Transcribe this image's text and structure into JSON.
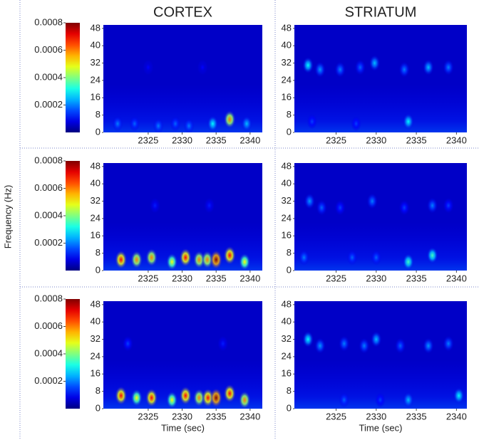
{
  "chart_data": [
    {
      "type": "heatmap",
      "title": "CORTEX",
      "xlim": [
        2318.4,
        2341.8
      ],
      "xticks": [
        2325,
        2330,
        2335,
        2340
      ],
      "ylim": [
        0,
        49.6
      ],
      "yticks": [
        0,
        8,
        16,
        24,
        32,
        40,
        48
      ],
      "colorbar": {
        "lim": [
          0,
          0.0008
        ],
        "ticks": [
          0.0002,
          0.0004,
          0.0006,
          0.0008
        ]
      },
      "x": [
        2320.5,
        2323,
        2326.5,
        2329,
        2331,
        2334.5,
        2337,
        2339.5,
        2333,
        2325
      ],
      "y": [
        4,
        4,
        3,
        4,
        3,
        4,
        6,
        4,
        30,
        30
      ],
      "values": [
        0.0002,
        0.00018,
        0.0002,
        0.00018,
        0.0002,
        0.0003,
        0.0006,
        0.00025,
        0.0001,
        0.0001
      ]
    },
    {
      "type": "heatmap",
      "title": "STRIATUM",
      "xlim": [
        2319.8,
        2341.3
      ],
      "xticks": [
        2325,
        2330,
        2335,
        2340
      ],
      "ylim": [
        0,
        49.6
      ],
      "yticks": [
        0,
        8,
        16,
        24,
        32,
        40,
        48
      ],
      "x": [
        2321.5,
        2323,
        2325.5,
        2328,
        2329.8,
        2333.5,
        2336.5,
        2339,
        2334,
        2322,
        2327.5
      ],
      "y": [
        31,
        29,
        29,
        30,
        32,
        29,
        30,
        30,
        5,
        5,
        4
      ],
      "values": [
        0.0003,
        0.00022,
        0.0002,
        0.00018,
        0.00025,
        0.0002,
        0.00025,
        0.0002,
        0.0003,
        0.00015,
        0.00015
      ]
    },
    {
      "type": "heatmap",
      "y_label": "Frequency (Hz)",
      "xlim": [
        2318.4,
        2341.8
      ],
      "xticks": [
        2325,
        2330,
        2335,
        2340
      ],
      "ylim": [
        0,
        49.6
      ],
      "yticks": [
        0,
        8,
        16,
        24,
        32,
        40,
        48
      ],
      "colorbar": {
        "lim": [
          0,
          0.0008
        ],
        "ticks": [
          0.0002,
          0.0004,
          0.0006,
          0.0008
        ]
      },
      "x": [
        2321,
        2323.3,
        2325.5,
        2328.5,
        2330.5,
        2332.5,
        2333.7,
        2335,
        2337,
        2339.2,
        2326,
        2334
      ],
      "y": [
        5,
        5,
        6,
        4,
        6,
        5,
        5,
        5,
        7,
        4,
        30,
        30
      ],
      "values": [
        0.0007,
        0.0006,
        0.0006,
        0.0005,
        0.0007,
        0.0006,
        0.0006,
        0.0008,
        0.0007,
        0.0005,
        0.00012,
        0.00012
      ]
    },
    {
      "type": "heatmap",
      "xlim": [
        2319.8,
        2341.3
      ],
      "xticks": [
        2325,
        2330,
        2335,
        2340
      ],
      "ylim": [
        0,
        49.6
      ],
      "yticks": [
        0,
        8,
        16,
        24,
        32,
        40,
        48
      ],
      "x": [
        2321.7,
        2323.2,
        2325.5,
        2329.5,
        2333.5,
        2337,
        2339,
        2334,
        2337,
        2321,
        2327,
        2330
      ],
      "y": [
        32,
        29,
        29,
        32,
        29,
        30,
        30,
        4,
        7,
        6,
        6,
        6
      ],
      "values": [
        0.00022,
        0.00018,
        0.00015,
        0.0002,
        0.00015,
        0.0002,
        0.00015,
        0.00035,
        0.00035,
        0.0002,
        0.00018,
        0.00018
      ]
    },
    {
      "type": "heatmap",
      "x_label": "Time (sec)",
      "xlim": [
        2318.4,
        2341.8
      ],
      "xticks": [
        2325,
        2330,
        2335,
        2340
      ],
      "ylim": [
        0,
        49.6
      ],
      "yticks": [
        0,
        8,
        16,
        24,
        32,
        40,
        48
      ],
      "colorbar": {
        "lim": [
          0,
          0.0008
        ],
        "ticks": [
          0.0002,
          0.0004,
          0.0006,
          0.0008
        ]
      },
      "x": [
        2321,
        2323.3,
        2325.5,
        2328.5,
        2330.5,
        2332.5,
        2333.8,
        2335,
        2337,
        2339.2,
        2322,
        2336
      ],
      "y": [
        6,
        5,
        5,
        4,
        6,
        5,
        5,
        5,
        7,
        4,
        30,
        30
      ],
      "values": [
        0.0007,
        0.0005,
        0.0007,
        0.0005,
        0.0007,
        0.0006,
        0.0007,
        0.0008,
        0.0007,
        0.0006,
        0.00015,
        0.00012
      ]
    },
    {
      "type": "heatmap",
      "x_label": "Time (sec)",
      "xlim": [
        2319.8,
        2341.3
      ],
      "xticks": [
        2325,
        2330,
        2335,
        2340
      ],
      "ylim": [
        0,
        49.6
      ],
      "yticks": [
        0,
        8,
        16,
        24,
        32,
        40,
        48
      ],
      "x": [
        2321.5,
        2323,
        2326,
        2328.5,
        2330,
        2333,
        2336.5,
        2339,
        2334,
        2340.3,
        2326,
        2330.5
      ],
      "y": [
        32,
        29,
        30,
        29,
        32,
        29,
        29,
        30,
        4,
        6,
        4,
        4
      ],
      "values": [
        0.0003,
        0.00022,
        0.0002,
        0.0002,
        0.00025,
        0.00018,
        0.00022,
        0.0002,
        0.00025,
        0.0003,
        0.00018,
        0.00015
      ]
    }
  ]
}
